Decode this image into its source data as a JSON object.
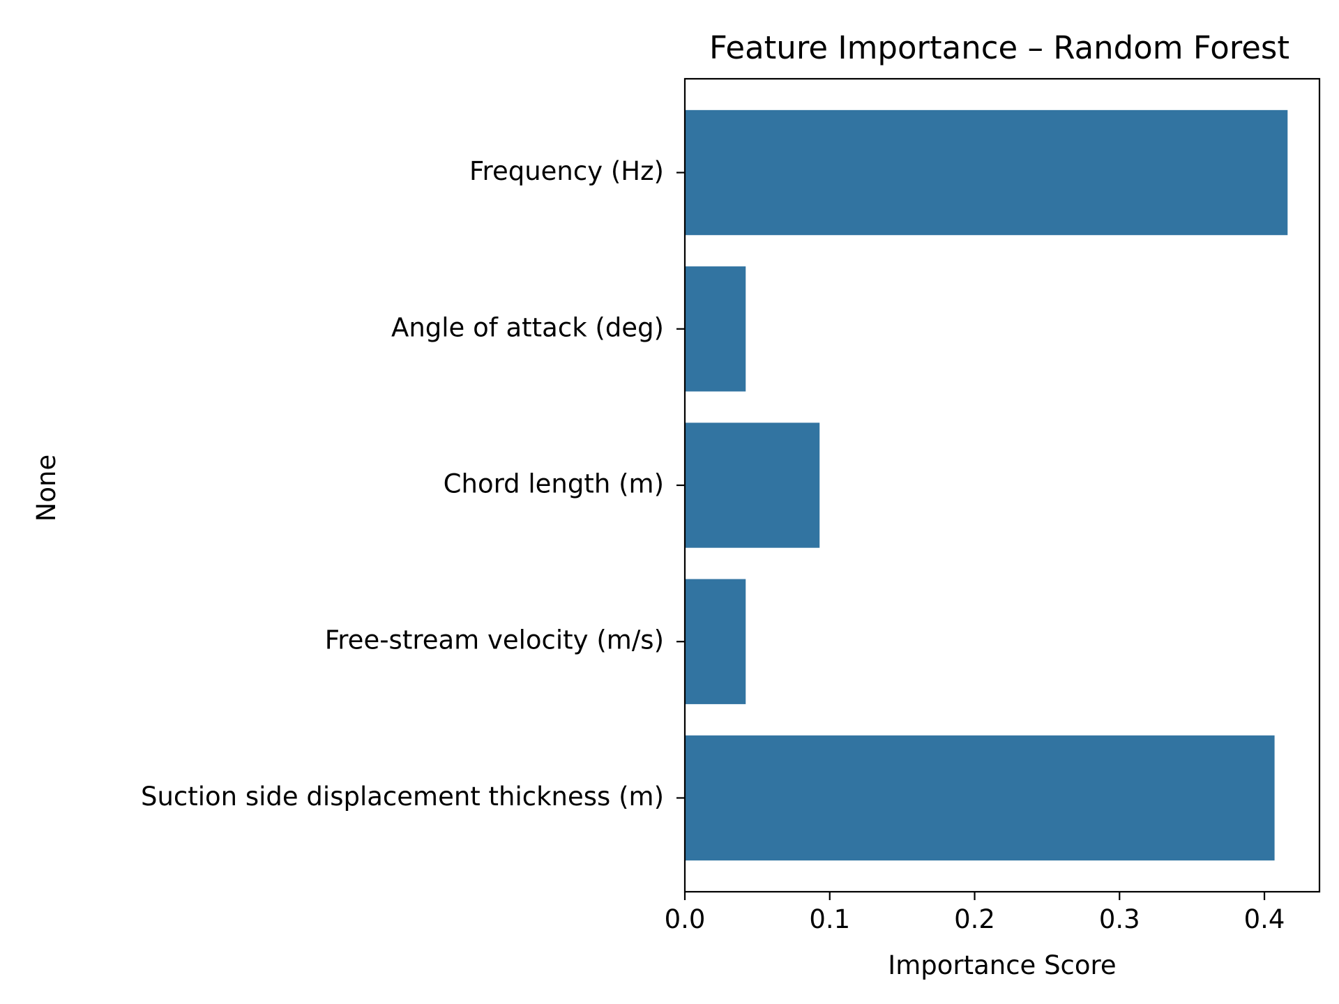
{
  "chart_data": {
    "type": "bar",
    "orientation": "horizontal",
    "title": "Feature Importance – Random Forest",
    "xlabel": "Importance Score",
    "ylabel": "None",
    "categories": [
      "Frequency (Hz)",
      "Angle of attack (deg)",
      "Chord length (m)",
      "Free-stream velocity (m/s)",
      "Suction side displacement thickness (m)"
    ],
    "values": [
      0.416,
      0.042,
      0.093,
      0.042,
      0.407
    ],
    "xlim": [
      0,
      0.438
    ],
    "xticks": [
      0.0,
      0.1,
      0.2,
      0.3,
      0.4
    ],
    "xtick_labels": [
      "0.0",
      "0.1",
      "0.2",
      "0.3",
      "0.4"
    ],
    "grid": false,
    "bar_color": "#3274a1"
  }
}
